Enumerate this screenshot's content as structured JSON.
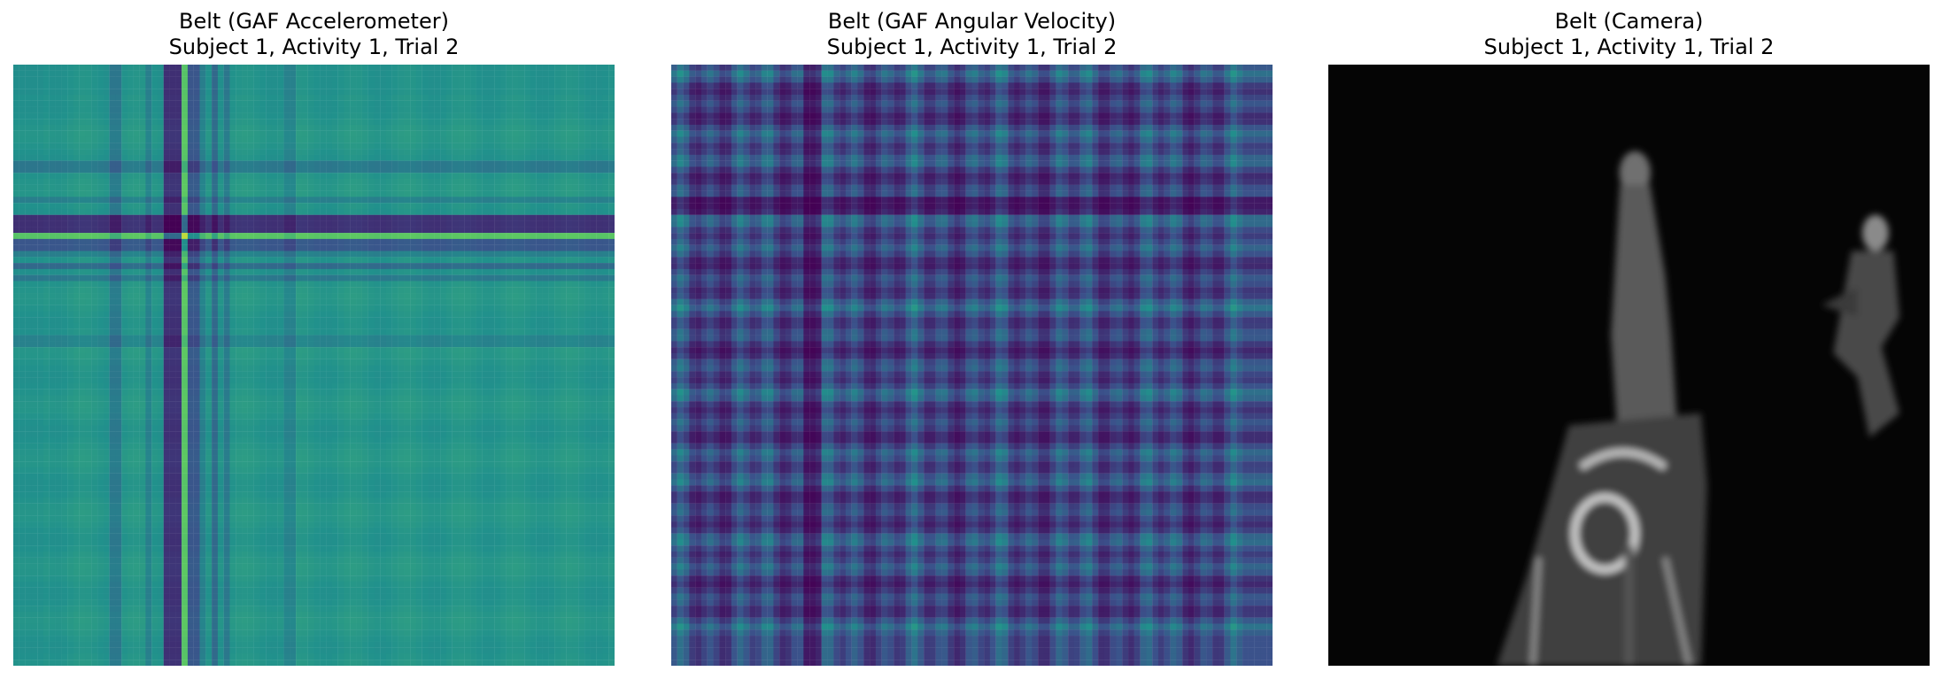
{
  "figure": {
    "panels": [
      {
        "title": "Belt (GAF Accelerometer)",
        "subtitle": "Subject 1, Activity 1, Trial 2"
      },
      {
        "title": "Belt (GAF Angular Velocity)",
        "subtitle": "Subject 1, Activity 1, Trial 2"
      },
      {
        "title": "Belt (Camera)",
        "subtitle": "Subject 1, Activity 1, Trial 2"
      }
    ]
  },
  "chart_data": [
    {
      "type": "heatmap",
      "title": "Belt (GAF Accelerometer)",
      "subtitle": "Subject 1, Activity 1, Trial 2",
      "colormap": "viridis",
      "axes_visible": false,
      "matrix_size": 100,
      "band_profile_notes": "symmetric Gramian Angular Field; yellow bands near index 25-30, dark purple band near index 26-28 along one axis, flat teal elsewhere",
      "colors": [
        "#440154",
        "#3b528b",
        "#21918c",
        "#5ec962",
        "#fde725"
      ]
    },
    {
      "type": "heatmap",
      "title": "Belt (GAF Angular Velocity)",
      "subtitle": "Subject 1, Activity 1, Trial 2",
      "colormap": "viridis",
      "axes_visible": false,
      "matrix_size": 100,
      "band_profile_notes": "symmetric Gramian Angular Field; bright yellow band near index 23, dark purple band near index 23 along one axis, many alternating green/blue stripes",
      "colors": [
        "#440154",
        "#3b528b",
        "#21918c",
        "#5ec962",
        "#fde725"
      ]
    },
    {
      "type": "heatmap",
      "title": "Belt (Camera)",
      "subtitle": "Subject 1, Activity 1, Trial 2",
      "colormap": "gray",
      "axes_visible": false,
      "content": "grayscale depth-camera frame of a person lying on a bed and a second person standing at the right"
    }
  ]
}
